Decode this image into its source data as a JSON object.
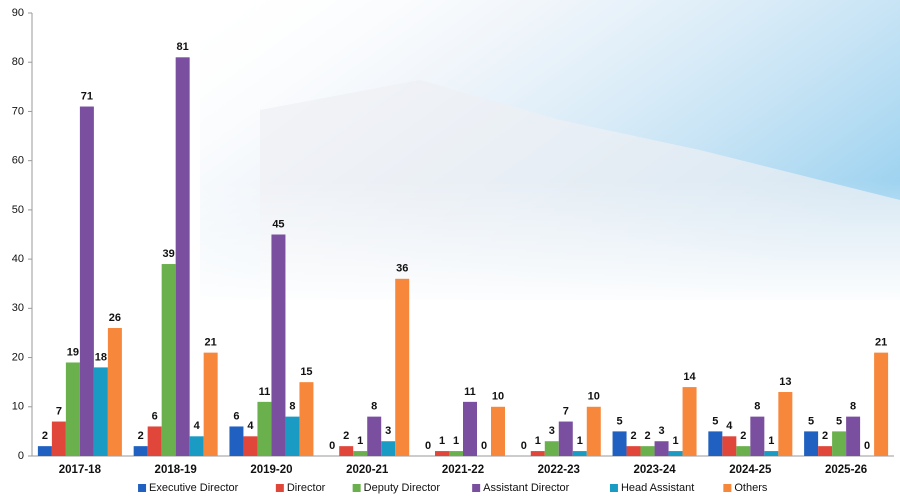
{
  "chart_data": {
    "type": "bar",
    "categories": [
      "2017-18",
      "2018-19",
      "2019-20",
      "2020-21",
      "2021-22",
      "2022-23",
      "2023-24",
      "2024-25",
      "2025-26"
    ],
    "series": [
      {
        "name": "Executive Director",
        "color": "#2060c0",
        "values": [
          2,
          2,
          6,
          0,
          0,
          0,
          5,
          5,
          5
        ]
      },
      {
        "name": "Director",
        "color": "#e0463a",
        "values": [
          7,
          6,
          4,
          2,
          1,
          1,
          2,
          4,
          2
        ]
      },
      {
        "name": "Deputy Director",
        "color": "#6ab04c",
        "values": [
          19,
          39,
          11,
          1,
          1,
          3,
          2,
          2,
          5
        ]
      },
      {
        "name": "Assistant Director",
        "color": "#7b4fa0",
        "values": [
          71,
          81,
          45,
          8,
          11,
          7,
          3,
          8,
          8
        ]
      },
      {
        "name": "Head Assistant",
        "color": "#1a9bc4",
        "values": [
          18,
          4,
          8,
          3,
          0,
          1,
          1,
          1,
          0
        ]
      },
      {
        "name": "Others",
        "color": "#f7873a",
        "values": [
          26,
          21,
          15,
          36,
          10,
          10,
          14,
          13,
          21
        ]
      }
    ],
    "ylim": [
      0,
      90
    ],
    "yticks": [
      0,
      10,
      20,
      30,
      40,
      50,
      60,
      70,
      80,
      90
    ],
    "legend": "bottom"
  }
}
